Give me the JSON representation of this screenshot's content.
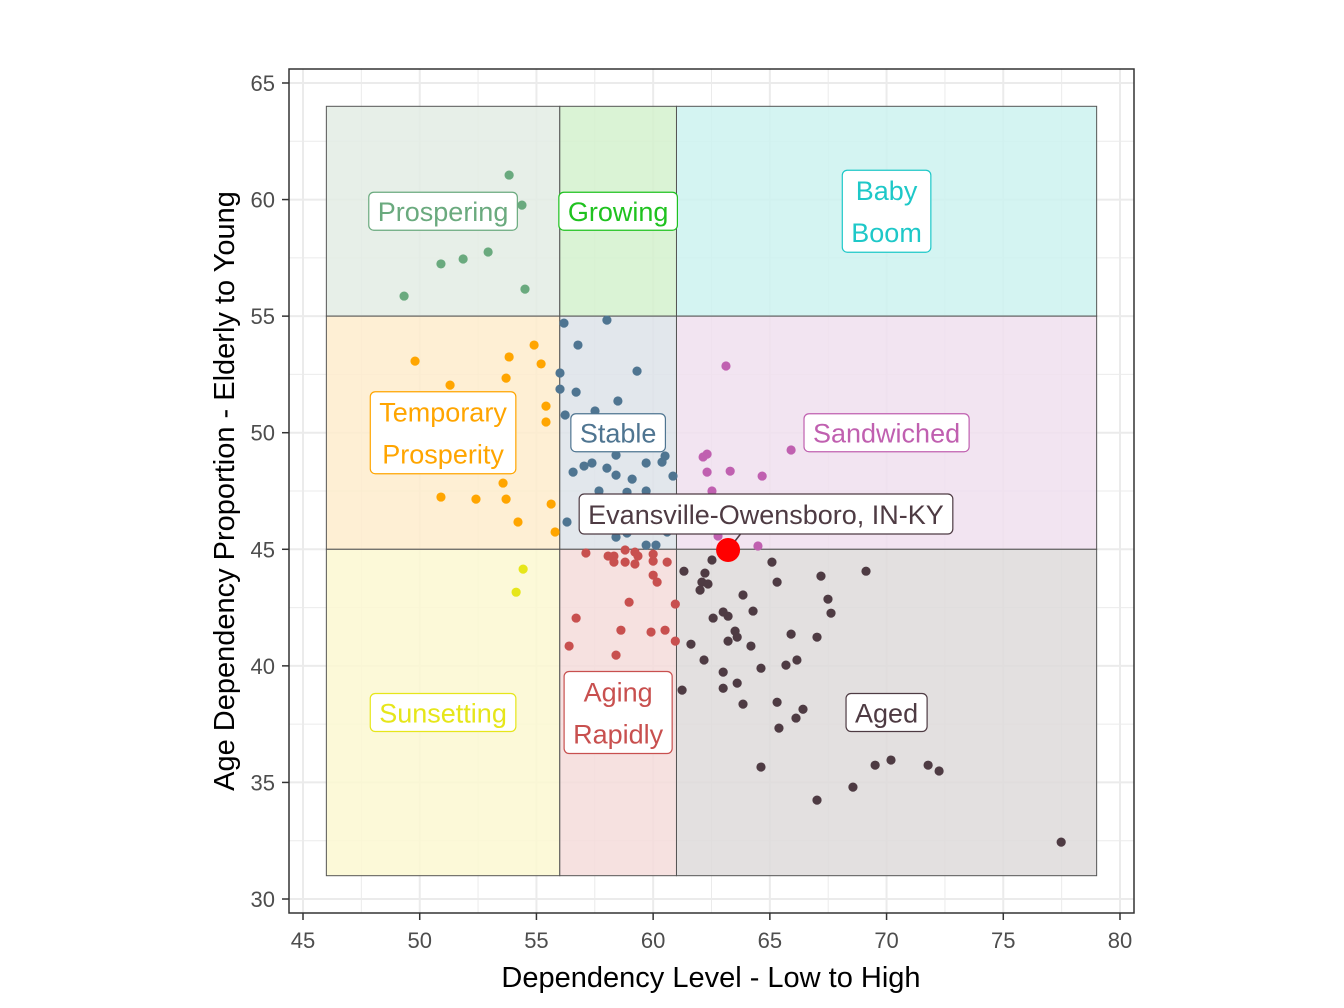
{
  "chart_data": {
    "type": "scatter",
    "xlabel": "Dependency Level - Low to High",
    "ylabel": "Age Dependency Proportion - Elderly to Young",
    "xlim": [
      44.4,
      80.6
    ],
    "ylim": [
      29.4,
      65.6
    ],
    "xticks": [
      45,
      50,
      55,
      60,
      65,
      70,
      75,
      80
    ],
    "yticks": [
      30,
      35,
      40,
      45,
      50,
      55,
      60,
      65
    ],
    "grid": true,
    "legend": "none",
    "quadrants": [
      {
        "name": "Prospering",
        "lines": [
          "Prospering"
        ],
        "x": [
          46,
          56
        ],
        "y": [
          55,
          64
        ],
        "fill": "#e3ece4",
        "color": "#6aaa7e",
        "label_at": [
          51,
          59.5
        ]
      },
      {
        "name": "Growing",
        "lines": [
          "Growing"
        ],
        "x": [
          56,
          61
        ],
        "y": [
          55,
          64
        ],
        "fill": "#d3f1ce",
        "color": "#1fc21f",
        "label_at": [
          58.5,
          59.5
        ]
      },
      {
        "name": "Baby Boom",
        "lines": [
          "Baby",
          "Boom"
        ],
        "x": [
          61,
          79
        ],
        "y": [
          55,
          64
        ],
        "fill": "#cdf2f0",
        "color": "#1ec8c8",
        "label_at": [
          70,
          59.5
        ]
      },
      {
        "name": "Temporary Prosperity",
        "lines": [
          "Temporary",
          "Prosperity"
        ],
        "x": [
          46,
          56
        ],
        "y": [
          45,
          55
        ],
        "fill": "#feeccd",
        "color": "#ffa500",
        "label_at": [
          51,
          50
        ]
      },
      {
        "name": "Stable",
        "lines": [
          "Stable"
        ],
        "x": [
          56,
          61
        ],
        "y": [
          45,
          55
        ],
        "fill": "#dde3e9",
        "color": "#4f7591",
        "label_at": [
          58.5,
          50
        ]
      },
      {
        "name": "Sandwiched",
        "lines": [
          "Sandwiched"
        ],
        "x": [
          61,
          79
        ],
        "y": [
          45,
          55
        ],
        "fill": "#f0dfee",
        "color": "#c060b0",
        "label_at": [
          70,
          50
        ]
      },
      {
        "name": "Sunsetting",
        "lines": [
          "Sunsetting"
        ],
        "x": [
          46,
          56
        ],
        "y": [
          31,
          45
        ],
        "fill": "#fbf8d1",
        "color": "#e6e61a",
        "label_at": [
          51,
          38
        ]
      },
      {
        "name": "Aging Rapidly",
        "lines": [
          "Aging",
          "Rapidly"
        ],
        "x": [
          56,
          61
        ],
        "y": [
          31,
          45
        ],
        "fill": "#f4dcdb",
        "color": "#c8504f",
        "label_at": [
          58.5,
          38
        ]
      },
      {
        "name": "Aged",
        "lines": [
          "Aged"
        ],
        "x": [
          61,
          79
        ],
        "y": [
          31,
          45
        ],
        "fill": "#dedada",
        "color": "#4e3b43",
        "label_at": [
          70,
          38
        ]
      }
    ],
    "series": [
      {
        "group": "Prospering",
        "color": "#6aaa7e",
        "points": [
          [
            53.83,
            61.05
          ],
          [
            54.38,
            59.76
          ],
          [
            50.91,
            57.24
          ],
          [
            51.86,
            57.45
          ],
          [
            52.93,
            57.75
          ],
          [
            54.51,
            56.16
          ],
          [
            49.33,
            55.86
          ]
        ]
      },
      {
        "group": "Temporary Prosperity",
        "color": "#ffa500",
        "points": [
          [
            49.8,
            53.07
          ],
          [
            51.3,
            52.04
          ],
          [
            54.9,
            53.76
          ],
          [
            53.83,
            53.25
          ],
          [
            55.2,
            52.95
          ],
          [
            53.7,
            52.34
          ],
          [
            55.41,
            51.14
          ],
          [
            55.41,
            50.46
          ],
          [
            50.91,
            47.24
          ],
          [
            52.41,
            47.15
          ],
          [
            53.7,
            47.15
          ],
          [
            53.57,
            47.84
          ],
          [
            55.63,
            46.94
          ],
          [
            54.21,
            46.17
          ],
          [
            55.8,
            45.74
          ]
        ]
      },
      {
        "group": "Stable",
        "color": "#4f7591",
        "points": [
          [
            58.02,
            54.83
          ],
          [
            56.18,
            54.7
          ],
          [
            56.78,
            53.76
          ],
          [
            56.01,
            52.56
          ],
          [
            59.31,
            52.64
          ],
          [
            56.01,
            51.87
          ],
          [
            56.7,
            51.74
          ],
          [
            58.49,
            51.36
          ],
          [
            56.23,
            50.76
          ],
          [
            57.51,
            50.93
          ],
          [
            57.04,
            48.57
          ],
          [
            57.38,
            48.7
          ],
          [
            56.57,
            48.31
          ],
          [
            58.02,
            48.48
          ],
          [
            58.41,
            49.04
          ],
          [
            58.41,
            48.18
          ],
          [
            59.1,
            48.01
          ],
          [
            59.7,
            48.7
          ],
          [
            60.38,
            48.74
          ],
          [
            60.51,
            49.0
          ],
          [
            60.85,
            48.14
          ],
          [
            57.68,
            47.5
          ],
          [
            58.88,
            47.45
          ],
          [
            59.7,
            47.5
          ],
          [
            58.41,
            45.52
          ],
          [
            58.88,
            45.7
          ],
          [
            59.7,
            45.18
          ],
          [
            60.12,
            45.18
          ],
          [
            60.6,
            45.74
          ],
          [
            56.31,
            46.17
          ]
        ]
      },
      {
        "group": "Sandwiched",
        "color": "#c060b0",
        "points": [
          [
            63.12,
            52.86
          ],
          [
            62.14,
            48.96
          ],
          [
            62.31,
            49.08
          ],
          [
            62.31,
            48.31
          ],
          [
            63.3,
            48.35
          ],
          [
            64.67,
            48.14
          ],
          [
            65.91,
            49.26
          ],
          [
            62.52,
            47.5
          ],
          [
            62.78,
            45.57
          ],
          [
            64.49,
            45.14
          ]
        ]
      },
      {
        "group": "Sunsetting",
        "color": "#e6e61a",
        "points": [
          [
            54.43,
            44.15
          ],
          [
            54.13,
            43.16
          ]
        ]
      },
      {
        "group": "Aging Rapidly",
        "color": "#c8504f",
        "points": [
          [
            57.12,
            44.84
          ],
          [
            58.07,
            44.71
          ],
          [
            58.32,
            44.71
          ],
          [
            58.32,
            44.45
          ],
          [
            58.8,
            44.97
          ],
          [
            58.8,
            44.45
          ],
          [
            59.22,
            44.88
          ],
          [
            59.35,
            44.71
          ],
          [
            59.22,
            44.37
          ],
          [
            60.0,
            44.79
          ],
          [
            60.0,
            44.49
          ],
          [
            60.6,
            44.45
          ],
          [
            60.0,
            43.89
          ],
          [
            60.17,
            43.59
          ],
          [
            58.97,
            42.73
          ],
          [
            60.95,
            42.65
          ],
          [
            56.7,
            42.05
          ],
          [
            58.62,
            41.53
          ],
          [
            59.91,
            41.45
          ],
          [
            60.51,
            41.53
          ],
          [
            56.4,
            40.85
          ],
          [
            60.95,
            41.06
          ],
          [
            58.41,
            40.46
          ]
        ]
      },
      {
        "group": "Aged",
        "color": "#4e3b43",
        "points": [
          [
            62.52,
            44.54
          ],
          [
            61.32,
            44.06
          ],
          [
            62.22,
            43.98
          ],
          [
            62.09,
            43.59
          ],
          [
            62.35,
            43.51
          ],
          [
            62.01,
            43.25
          ],
          [
            65.09,
            44.45
          ],
          [
            65.31,
            43.59
          ],
          [
            63.85,
            43.04
          ],
          [
            64.28,
            42.35
          ],
          [
            63.0,
            42.31
          ],
          [
            63.21,
            42.13
          ],
          [
            62.57,
            42.05
          ],
          [
            67.19,
            43.85
          ],
          [
            67.49,
            42.86
          ],
          [
            67.62,
            42.26
          ],
          [
            69.12,
            44.06
          ],
          [
            65.91,
            41.36
          ],
          [
            67.02,
            41.23
          ],
          [
            63.51,
            41.49
          ],
          [
            63.6,
            41.23
          ],
          [
            63.21,
            41.06
          ],
          [
            64.19,
            40.85
          ],
          [
            61.62,
            40.93
          ],
          [
            62.18,
            40.25
          ],
          [
            63.0,
            39.73
          ],
          [
            64.62,
            39.9
          ],
          [
            65.69,
            40.03
          ],
          [
            66.16,
            40.25
          ],
          [
            63.0,
            39.04
          ],
          [
            63.6,
            39.26
          ],
          [
            61.24,
            38.96
          ],
          [
            63.85,
            38.36
          ],
          [
            65.31,
            38.44
          ],
          [
            66.42,
            38.14
          ],
          [
            66.12,
            37.76
          ],
          [
            65.39,
            37.33
          ],
          [
            64.62,
            35.66
          ],
          [
            69.51,
            35.74
          ],
          [
            70.19,
            35.96
          ],
          [
            68.56,
            34.8
          ],
          [
            67.02,
            34.24
          ],
          [
            71.78,
            35.74
          ],
          [
            72.25,
            35.49
          ],
          [
            77.48,
            32.44
          ]
        ]
      }
    ],
    "highlight": {
      "label": "Evansville-Owensboro, IN-KY",
      "point": [
        63.21,
        44.97
      ],
      "color": "#ff0000"
    }
  }
}
